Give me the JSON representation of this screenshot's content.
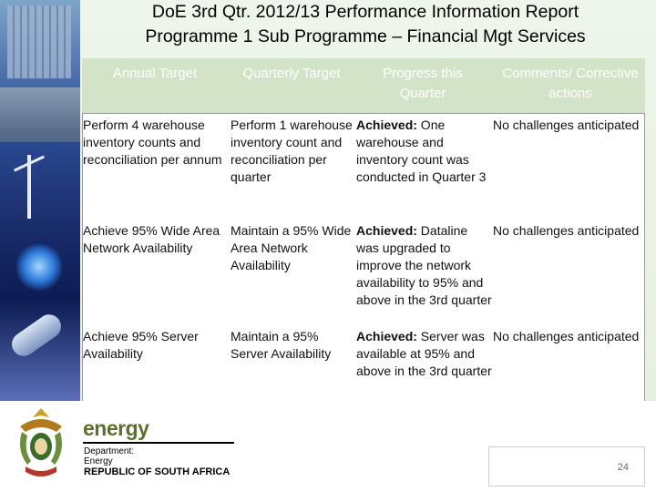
{
  "slide": {
    "title_line1": "DoE 3rd Qtr. 2012/13 Performance Information Report",
    "title_line2": "Programme 1 Sub Programme – Financial Mgt Services",
    "page_number": "24"
  },
  "table": {
    "headers": [
      "Annual Target",
      "Quarterly Target",
      "Progress this Quarter",
      "Comments/ Corrective actions"
    ],
    "rows": [
      {
        "annual": "Perform 4 warehouse inventory counts and reconciliation per annum",
        "quarterly": "Perform 1 warehouse inventory count and reconciliation per quarter",
        "progress_label": "Achieved:",
        "progress_text": " One warehouse and inventory count was conducted in Quarter 3",
        "comment": "No challenges anticipated"
      },
      {
        "annual": "Achieve 95% Wide Area Network Availability",
        "quarterly": "Maintain a 95% Wide Area Network Availability",
        "progress_label": "Achieved:",
        "progress_text": " Dataline was upgraded to improve the network availability to 95% and above in the 3rd quarter",
        "comment": "No challenges anticipated"
      },
      {
        "annual": "Achieve 95% Server Availability",
        "quarterly": "Maintain a 95% Server Availability",
        "progress_label": "Achieved:",
        "progress_text": " Server was available at 95% and above in the 3rd quarter",
        "comment": "No challenges anticipated"
      }
    ]
  },
  "footer": {
    "logo_word": "energy",
    "dept_line1": "Department:",
    "dept_line2": "Energy",
    "country": "REPUBLIC OF SOUTH AFRICA"
  },
  "colors": {
    "header_band": "#d3e3c7",
    "logo_green": "#5b6f2e"
  }
}
